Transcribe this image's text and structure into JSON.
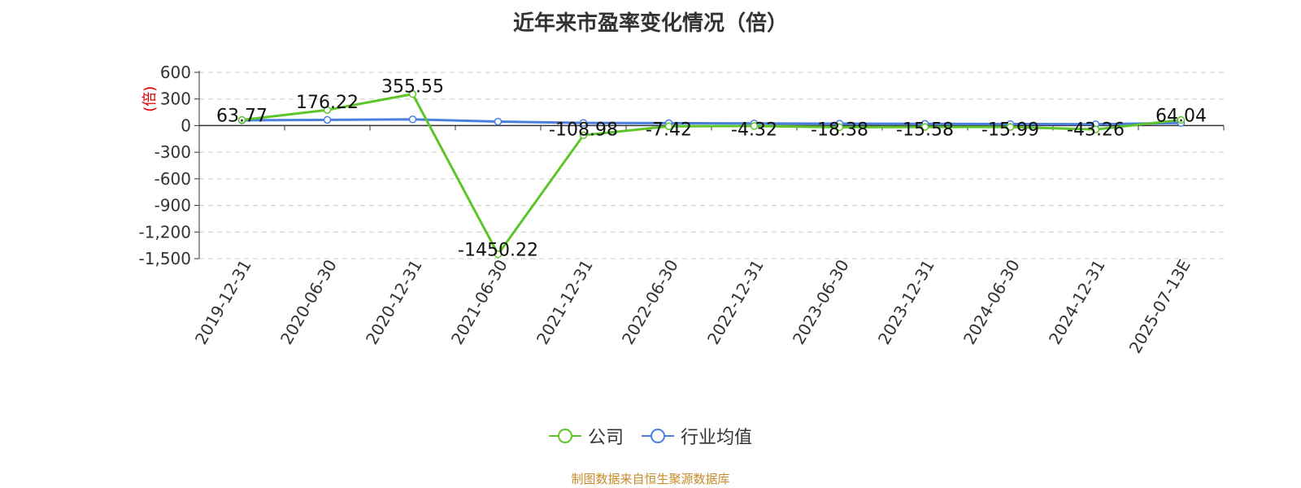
{
  "title": "近年来市盈率变化情况（倍）",
  "source": "制图数据来自恒生聚源数据库",
  "colors": {
    "company": "#5cc52a",
    "industry": "#4a7fe0",
    "grid": "#cccccc",
    "source": "#c88a2a",
    "ylabel": "#e00000"
  },
  "chart_data": {
    "type": "line",
    "title": "近年来市盈率变化情况（倍）",
    "ylabel": "(倍)",
    "xlabel": "",
    "ylim": [
      -1500,
      600
    ],
    "yticks": [
      600,
      300,
      0,
      -300,
      -600,
      -900,
      -1200,
      -1500
    ],
    "ytick_labels": [
      "600",
      "300",
      "0",
      "-300",
      "-600",
      "-900",
      "-1,200",
      "-1,500"
    ],
    "categories": [
      "2019-12-31",
      "2020-06-30",
      "2020-12-31",
      "2021-06-30",
      "2021-12-31",
      "2022-06-30",
      "2022-12-31",
      "2023-06-30",
      "2023-12-31",
      "2024-06-30",
      "2024-12-31",
      "2025-07-13E"
    ],
    "grid": true,
    "legend_position": "bottom",
    "series": [
      {
        "name": "公司",
        "color": "#5cc52a",
        "values": [
          63.77,
          176.22,
          355.55,
          -1450.22,
          -108.98,
          -7.42,
          -4.32,
          -18.38,
          -15.58,
          -15.99,
          -43.26,
          64.04
        ],
        "labels": [
          "63.77",
          "176.22",
          "355.55",
          "-1450.22",
          "-108.98",
          "-7.42",
          "-4.32",
          "-18.38",
          "-15.58",
          "-15.99",
          "-43.26",
          "64.04"
        ]
      },
      {
        "name": "行业均值",
        "color": "#4a7fe0",
        "values": [
          60,
          65,
          70,
          45,
          30,
          28,
          25,
          22,
          20,
          18,
          15,
          30
        ]
      }
    ]
  }
}
